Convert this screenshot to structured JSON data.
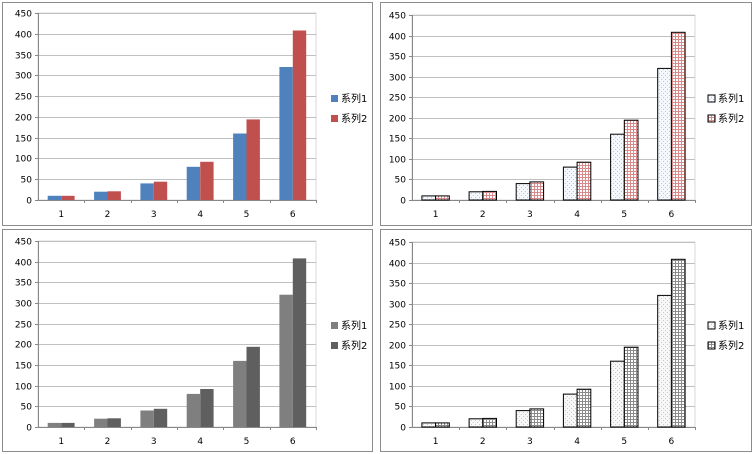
{
  "chart_data": [
    {
      "type": "bar",
      "categories": [
        "1",
        "2",
        "3",
        "4",
        "5",
        "6"
      ],
      "series": [
        {
          "name": "系列1",
          "values": [
            10,
            20,
            40,
            80,
            160,
            320
          ],
          "fill": "#4f81bd",
          "pattern": "solid"
        },
        {
          "name": "系列2",
          "values": [
            10,
            21,
            44,
            92,
            194,
            408
          ],
          "fill": "#c0504d",
          "pattern": "solid"
        }
      ],
      "yticks": [
        0,
        50,
        100,
        150,
        200,
        250,
        300,
        350,
        400,
        450
      ],
      "ylim": [
        0,
        450
      ],
      "grid": true,
      "legend": "right"
    },
    {
      "type": "bar",
      "categories": [
        "1",
        "2",
        "3",
        "4",
        "5",
        "6"
      ],
      "series": [
        {
          "name": "系列1",
          "values": [
            10,
            20,
            40,
            80,
            160,
            320
          ],
          "fill": "#eef2fa",
          "pattern": "light-blue-dots"
        },
        {
          "name": "系列2",
          "values": [
            10,
            21,
            44,
            92,
            194,
            408
          ],
          "fill": "#f7e4e4",
          "pattern": "red-grid"
        }
      ],
      "yticks": [
        0,
        50,
        100,
        150,
        200,
        250,
        300,
        350,
        400,
        450
      ],
      "ylim": [
        0,
        450
      ],
      "grid": true,
      "legend": "right"
    },
    {
      "type": "bar",
      "categories": [
        "1",
        "2",
        "3",
        "4",
        "5",
        "6"
      ],
      "series": [
        {
          "name": "系列1",
          "values": [
            10,
            20,
            40,
            80,
            160,
            320
          ],
          "fill": "#7f7f7f",
          "pattern": "solid"
        },
        {
          "name": "系列2",
          "values": [
            10,
            21,
            44,
            92,
            194,
            408
          ],
          "fill": "#5f5f5f",
          "pattern": "solid"
        }
      ],
      "yticks": [
        0,
        50,
        100,
        150,
        200,
        250,
        300,
        350,
        400,
        450
      ],
      "ylim": [
        0,
        450
      ],
      "grid": true,
      "legend": "right"
    },
    {
      "type": "bar",
      "categories": [
        "1",
        "2",
        "3",
        "4",
        "5",
        "6"
      ],
      "series": [
        {
          "name": "系列1",
          "values": [
            10,
            20,
            40,
            80,
            160,
            320
          ],
          "fill": "#f2f2f2",
          "pattern": "light-gray-dots"
        },
        {
          "name": "系列2",
          "values": [
            10,
            21,
            44,
            92,
            194,
            408
          ],
          "fill": "#dcdcdc",
          "pattern": "gray-grid"
        }
      ],
      "yticks": [
        0,
        50,
        100,
        150,
        200,
        250,
        300,
        350,
        400,
        450
      ],
      "ylim": [
        0,
        450
      ],
      "grid": true,
      "legend": "right"
    }
  ]
}
